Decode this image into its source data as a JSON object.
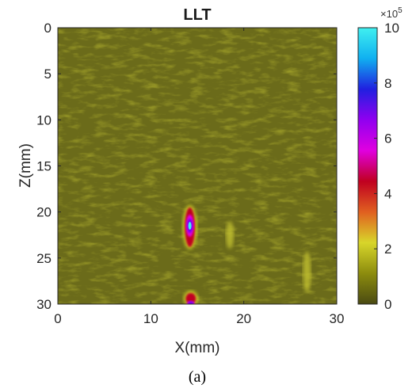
{
  "chart_data": {
    "type": "heatmap",
    "title": "LLT",
    "xlabel": "X(mm)",
    "ylabel": "Z(mm)",
    "xlim": [
      0,
      30
    ],
    "ylim": [
      0,
      30
    ],
    "y_reversed": true,
    "x_ticks": [
      0,
      10,
      20,
      30
    ],
    "y_ticks": [
      0,
      5,
      10,
      15,
      20,
      25,
      30
    ],
    "colorbar": {
      "multiplier_base": "×10",
      "multiplier_exponent": "5",
      "range": [
        0,
        10
      ],
      "ticks": [
        0,
        2,
        4,
        6,
        8,
        10
      ],
      "colormap": [
        "#4a4a12",
        "#8c8c0e",
        "#d8d62a",
        "#e06020",
        "#c00020",
        "#e000e0",
        "#9000f0",
        "#2020e0",
        "#10b0f0",
        "#40f0f0"
      ]
    },
    "hotspots": [
      {
        "x": 14.2,
        "z_from": 19.5,
        "z_to": 23.8,
        "peak_z": 21.5,
        "peak_value": 10
      },
      {
        "x": 14.3,
        "z_from": 28.8,
        "z_to": 30,
        "peak_z": 30,
        "peak_value": 7
      },
      {
        "x": 18.5,
        "z_from": 21.0,
        "z_to": 24.0,
        "peak_z": 22.5,
        "peak_value": 1.5
      },
      {
        "x": 26.8,
        "z_from": 24.5,
        "z_to": 29.0,
        "peak_z": 26.5,
        "peak_value": 1.5
      }
    ],
    "background_level": 0.5
  },
  "caption": "(a)"
}
